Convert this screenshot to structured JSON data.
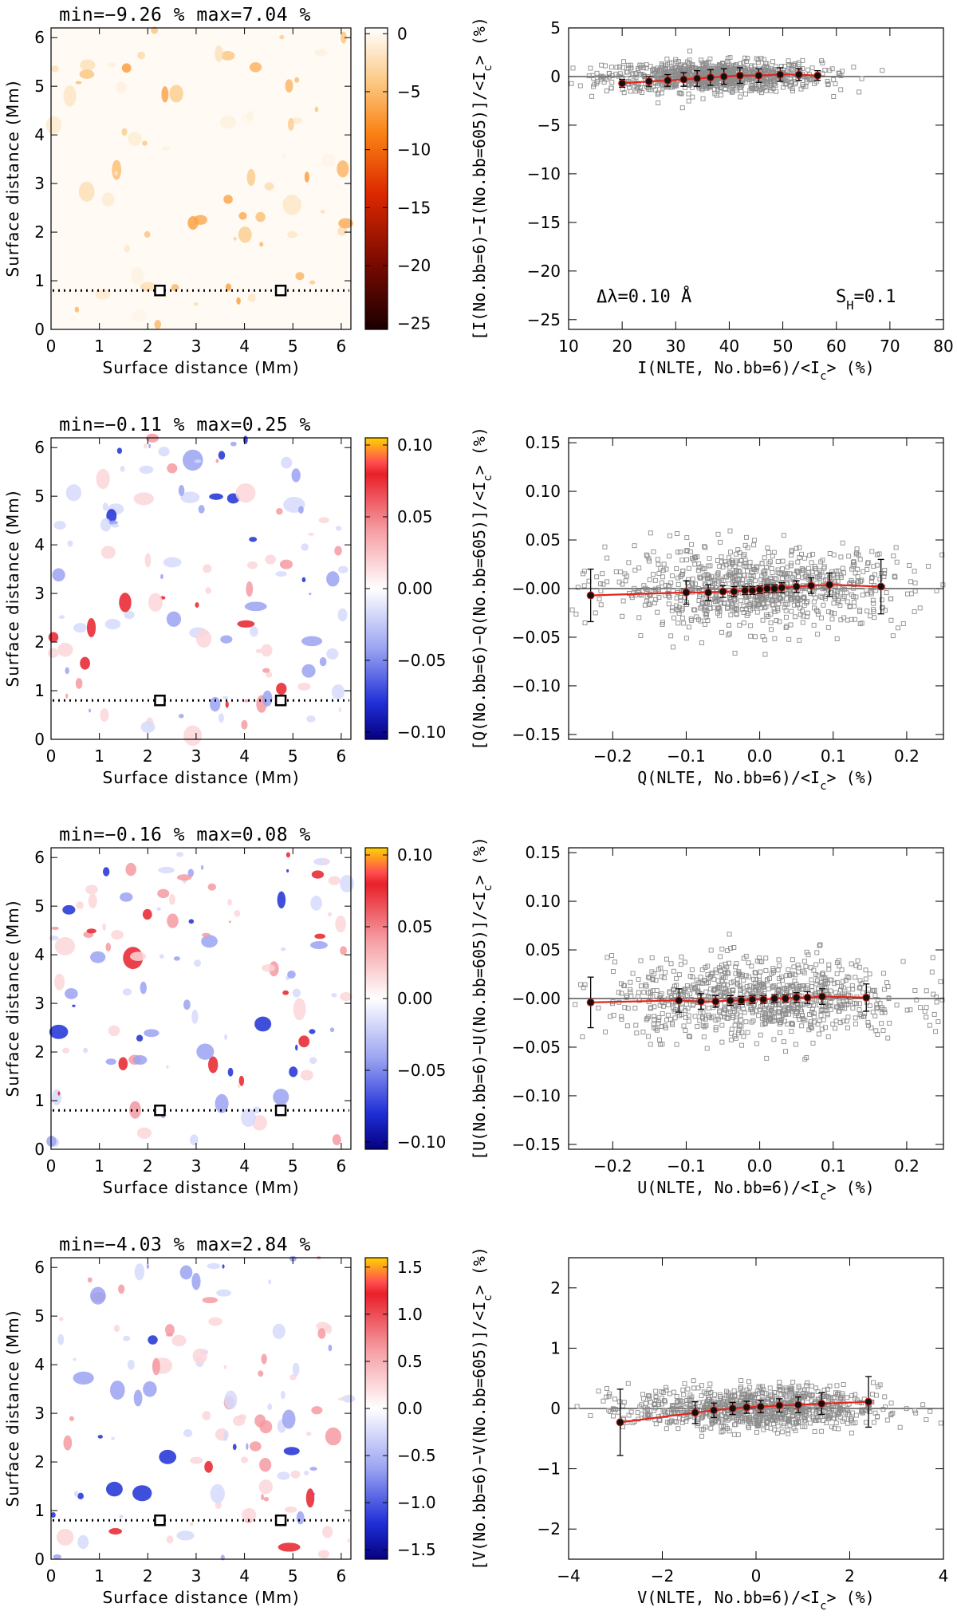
{
  "common": {
    "x_label": "Surface distance (Mm)",
    "y_label": "Surface distance (Mm)",
    "map_ticks": [
      "0",
      "1",
      "2",
      "3",
      "4",
      "5",
      "6"
    ],
    "marker_y_mm": 0.8,
    "marker_x_mm": [
      2.25,
      4.75
    ]
  },
  "chart_data": [
    {
      "type": "heatmap",
      "title": "min=−9.26 % max=7.04 %",
      "xlabel": "Surface distance (Mm)",
      "ylabel": "Surface distance (Mm)",
      "xlim": [
        0,
        6.2
      ],
      "ylim": [
        0,
        6.2
      ],
      "colorbar": {
        "scheme": "orange",
        "range": [
          -25.5,
          0.5
        ],
        "ticks": [
          0,
          -5,
          -10,
          -15,
          -20,
          -25
        ],
        "tick_labels": [
          "0",
          "−5",
          "−10",
          "−15",
          "−20",
          "−25"
        ]
      }
    },
    {
      "type": "scatter",
      "ylabel": "[I(No.bb=6)−I(No.bb=605)]/<I",
      "ylabel_sub": "c",
      "ylabel_end": "> (%)",
      "xlabel": "I(NLTE, No.bb=6)/<I",
      "xlabel_sub": "c",
      "xlabel_end": "> (%)",
      "xlim": [
        10,
        80
      ],
      "ylim": [
        -26,
        5
      ],
      "xticks": [
        10,
        20,
        30,
        40,
        50,
        60,
        70,
        80
      ],
      "xtick_labels": [
        "10",
        "20",
        "30",
        "40",
        "50",
        "60",
        "70",
        "80"
      ],
      "yticks": [
        5,
        0,
        -5,
        -10,
        -15,
        -20,
        -25
      ],
      "ytick_labels": [
        "5",
        "0",
        "−5",
        "−10",
        "−15",
        "−20",
        "−25"
      ],
      "annotation_left": "Δλ=0.10 Å",
      "annotation_right": "S",
      "annotation_right_sub": "H",
      "annotation_right_end": "=0.1",
      "scatter_cloud": {
        "x_center": 37,
        "x_spread": 10,
        "y_center": 0,
        "y_spread": 0.8
      },
      "binned_x": [
        20.0,
        25.0,
        28.5,
        31.5,
        34.0,
        36.5,
        39.0,
        42.0,
        45.5,
        49.5,
        53.0,
        56.5
      ],
      "binned_y": [
        -0.7,
        -0.5,
        -0.4,
        -0.3,
        -0.2,
        -0.1,
        0.0,
        0.1,
        0.1,
        0.2,
        0.2,
        0.1
      ],
      "binned_err": [
        0.4,
        0.5,
        0.6,
        0.7,
        0.8,
        0.8,
        0.8,
        0.8,
        0.7,
        0.7,
        0.6,
        0.5
      ]
    },
    {
      "type": "heatmap",
      "title": "min=−0.11 % max=0.25 %",
      "xlabel": "Surface distance (Mm)",
      "ylabel": "Surface distance (Mm)",
      "xlim": [
        0,
        6.2
      ],
      "ylim": [
        0,
        6.2
      ],
      "colorbar": {
        "scheme": "diverging",
        "range": [
          -0.105,
          0.105
        ],
        "ticks": [
          0.1,
          0.05,
          0.0,
          -0.05,
          -0.1
        ],
        "tick_labels": [
          "0.10",
          "0.05",
          "0.00",
          "−0.05",
          "−0.10"
        ]
      }
    },
    {
      "type": "scatter",
      "ylabel": "[Q(No.bb=6)−Q(No.bb=605)]/<I",
      "ylabel_sub": "c",
      "ylabel_end": "> (%)",
      "xlabel": "Q(NLTE, No.bb=6)/<I",
      "xlabel_sub": "c",
      "xlabel_end": "> (%)",
      "xlim": [
        -0.26,
        0.25
      ],
      "ylim": [
        -0.155,
        0.155
      ],
      "xticks": [
        -0.2,
        -0.1,
        0.0,
        0.1,
        0.2
      ],
      "xtick_labels": [
        "−0.2",
        "−0.1",
        "0.0",
        "0.1",
        "0.2"
      ],
      "yticks": [
        0.15,
        0.1,
        0.05,
        0.0,
        -0.05,
        -0.1,
        -0.15
      ],
      "ytick_labels": [
        "0.15",
        "0.10",
        "0.05",
        "−0.00",
        "−0.05",
        "−0.10",
        "−0.15"
      ],
      "scatter_cloud": {
        "x_center": 0,
        "x_spread": 0.1,
        "y_center": 0,
        "y_spread": 0.02
      },
      "binned_x": [
        -0.23,
        -0.1,
        -0.07,
        -0.05,
        -0.035,
        -0.02,
        -0.01,
        0.0,
        0.01,
        0.02,
        0.03,
        0.05,
        0.07,
        0.095,
        0.165
      ],
      "binned_y": [
        -0.007,
        -0.004,
        -0.004,
        -0.003,
        -0.003,
        -0.002,
        -0.002,
        -0.001,
        0.0,
        0.0,
        0.001,
        0.002,
        0.003,
        0.004,
        0.002
      ],
      "binned_err": [
        0.027,
        0.012,
        0.008,
        0.006,
        0.005,
        0.004,
        0.004,
        0.004,
        0.004,
        0.004,
        0.005,
        0.006,
        0.008,
        0.012,
        0.028
      ]
    },
    {
      "type": "heatmap",
      "title": "min=−0.16 % max=0.08 %",
      "xlabel": "Surface distance (Mm)",
      "ylabel": "Surface distance (Mm)",
      "xlim": [
        0,
        6.2
      ],
      "ylim": [
        0,
        6.2
      ],
      "colorbar": {
        "scheme": "diverging",
        "range": [
          -0.105,
          0.105
        ],
        "ticks": [
          0.1,
          0.05,
          0.0,
          -0.05,
          -0.1
        ],
        "tick_labels": [
          "0.10",
          "0.05",
          "0.00",
          "−0.05",
          "−0.10"
        ]
      }
    },
    {
      "type": "scatter",
      "ylabel": "[U(No.bb=6)−U(No.bb=605)]/<I",
      "ylabel_sub": "c",
      "ylabel_end": "> (%)",
      "xlabel": "U(NLTE, No.bb=6)/<I",
      "xlabel_sub": "c",
      "xlabel_end": "> (%)",
      "xlim": [
        -0.26,
        0.25
      ],
      "ylim": [
        -0.155,
        0.155
      ],
      "xticks": [
        -0.2,
        -0.1,
        0.0,
        0.1,
        0.2
      ],
      "xtick_labels": [
        "−0.2",
        "−0.1",
        "0.0",
        "0.1",
        "0.2"
      ],
      "yticks": [
        0.15,
        0.1,
        0.05,
        0.0,
        -0.05,
        -0.1,
        -0.15
      ],
      "ytick_labels": [
        "0.15",
        "0.10",
        "0.05",
        "−0.00",
        "−0.05",
        "−0.10",
        "−0.15"
      ],
      "scatter_cloud": {
        "x_center": 0,
        "x_spread": 0.1,
        "y_center": 0,
        "y_spread": 0.02
      },
      "binned_x": [
        -0.23,
        -0.11,
        -0.08,
        -0.06,
        -0.04,
        -0.025,
        -0.01,
        0.005,
        0.02,
        0.035,
        0.05,
        0.065,
        0.085,
        0.145
      ],
      "binned_y": [
        -0.004,
        -0.002,
        -0.003,
        -0.003,
        -0.002,
        -0.002,
        -0.001,
        -0.001,
        0.0,
        0.0,
        0.001,
        0.001,
        0.002,
        0.001
      ],
      "binned_err": [
        0.026,
        0.012,
        0.008,
        0.006,
        0.005,
        0.004,
        0.004,
        0.004,
        0.004,
        0.004,
        0.005,
        0.006,
        0.008,
        0.014
      ]
    },
    {
      "type": "heatmap",
      "title": "min=−4.03 % max=2.84 %",
      "xlabel": "Surface distance (Mm)",
      "ylabel": "Surface distance (Mm)",
      "xlim": [
        0,
        6.2
      ],
      "ylim": [
        0,
        6.2
      ],
      "colorbar": {
        "scheme": "diverging",
        "range": [
          -1.6,
          1.6
        ],
        "ticks": [
          1.5,
          1.0,
          0.5,
          0.0,
          -0.5,
          -1.0,
          -1.5
        ],
        "tick_labels": [
          "1.5",
          "1.0",
          "0.5",
          "0.0",
          "−0.5",
          "−1.0",
          "−1.5"
        ]
      }
    },
    {
      "type": "scatter",
      "ylabel": "[V(No.bb=6)−V(No.bb=605)]/<I",
      "ylabel_sub": "c",
      "ylabel_end": "> (%)",
      "xlabel": "V(NLTE, No.bb=6)/<I",
      "xlabel_sub": "c",
      "xlabel_end": "> (%)",
      "xlim": [
        -4,
        4
      ],
      "ylim": [
        -2.5,
        2.5
      ],
      "xticks": [
        -4,
        -2,
        0,
        2,
        4
      ],
      "xtick_labels": [
        "−4",
        "−2",
        "0",
        "2",
        "4"
      ],
      "yticks": [
        2,
        1,
        0,
        -1,
        -2
      ],
      "ytick_labels": [
        "2",
        "1",
        "0",
        "−1",
        "−2"
      ],
      "scatter_cloud": {
        "x_center": 0,
        "x_spread": 1.3,
        "y_center": 0,
        "y_spread": 0.18
      },
      "binned_x": [
        -2.9,
        -1.3,
        -0.9,
        -0.5,
        -0.2,
        0.1,
        0.5,
        0.9,
        1.4,
        2.4
      ],
      "binned_y": [
        -0.23,
        -0.07,
        -0.03,
        0.0,
        0.02,
        0.03,
        0.05,
        0.06,
        0.08,
        0.11
      ],
      "binned_err": [
        0.55,
        0.18,
        0.12,
        0.1,
        0.1,
        0.1,
        0.11,
        0.13,
        0.18,
        0.42
      ]
    }
  ]
}
